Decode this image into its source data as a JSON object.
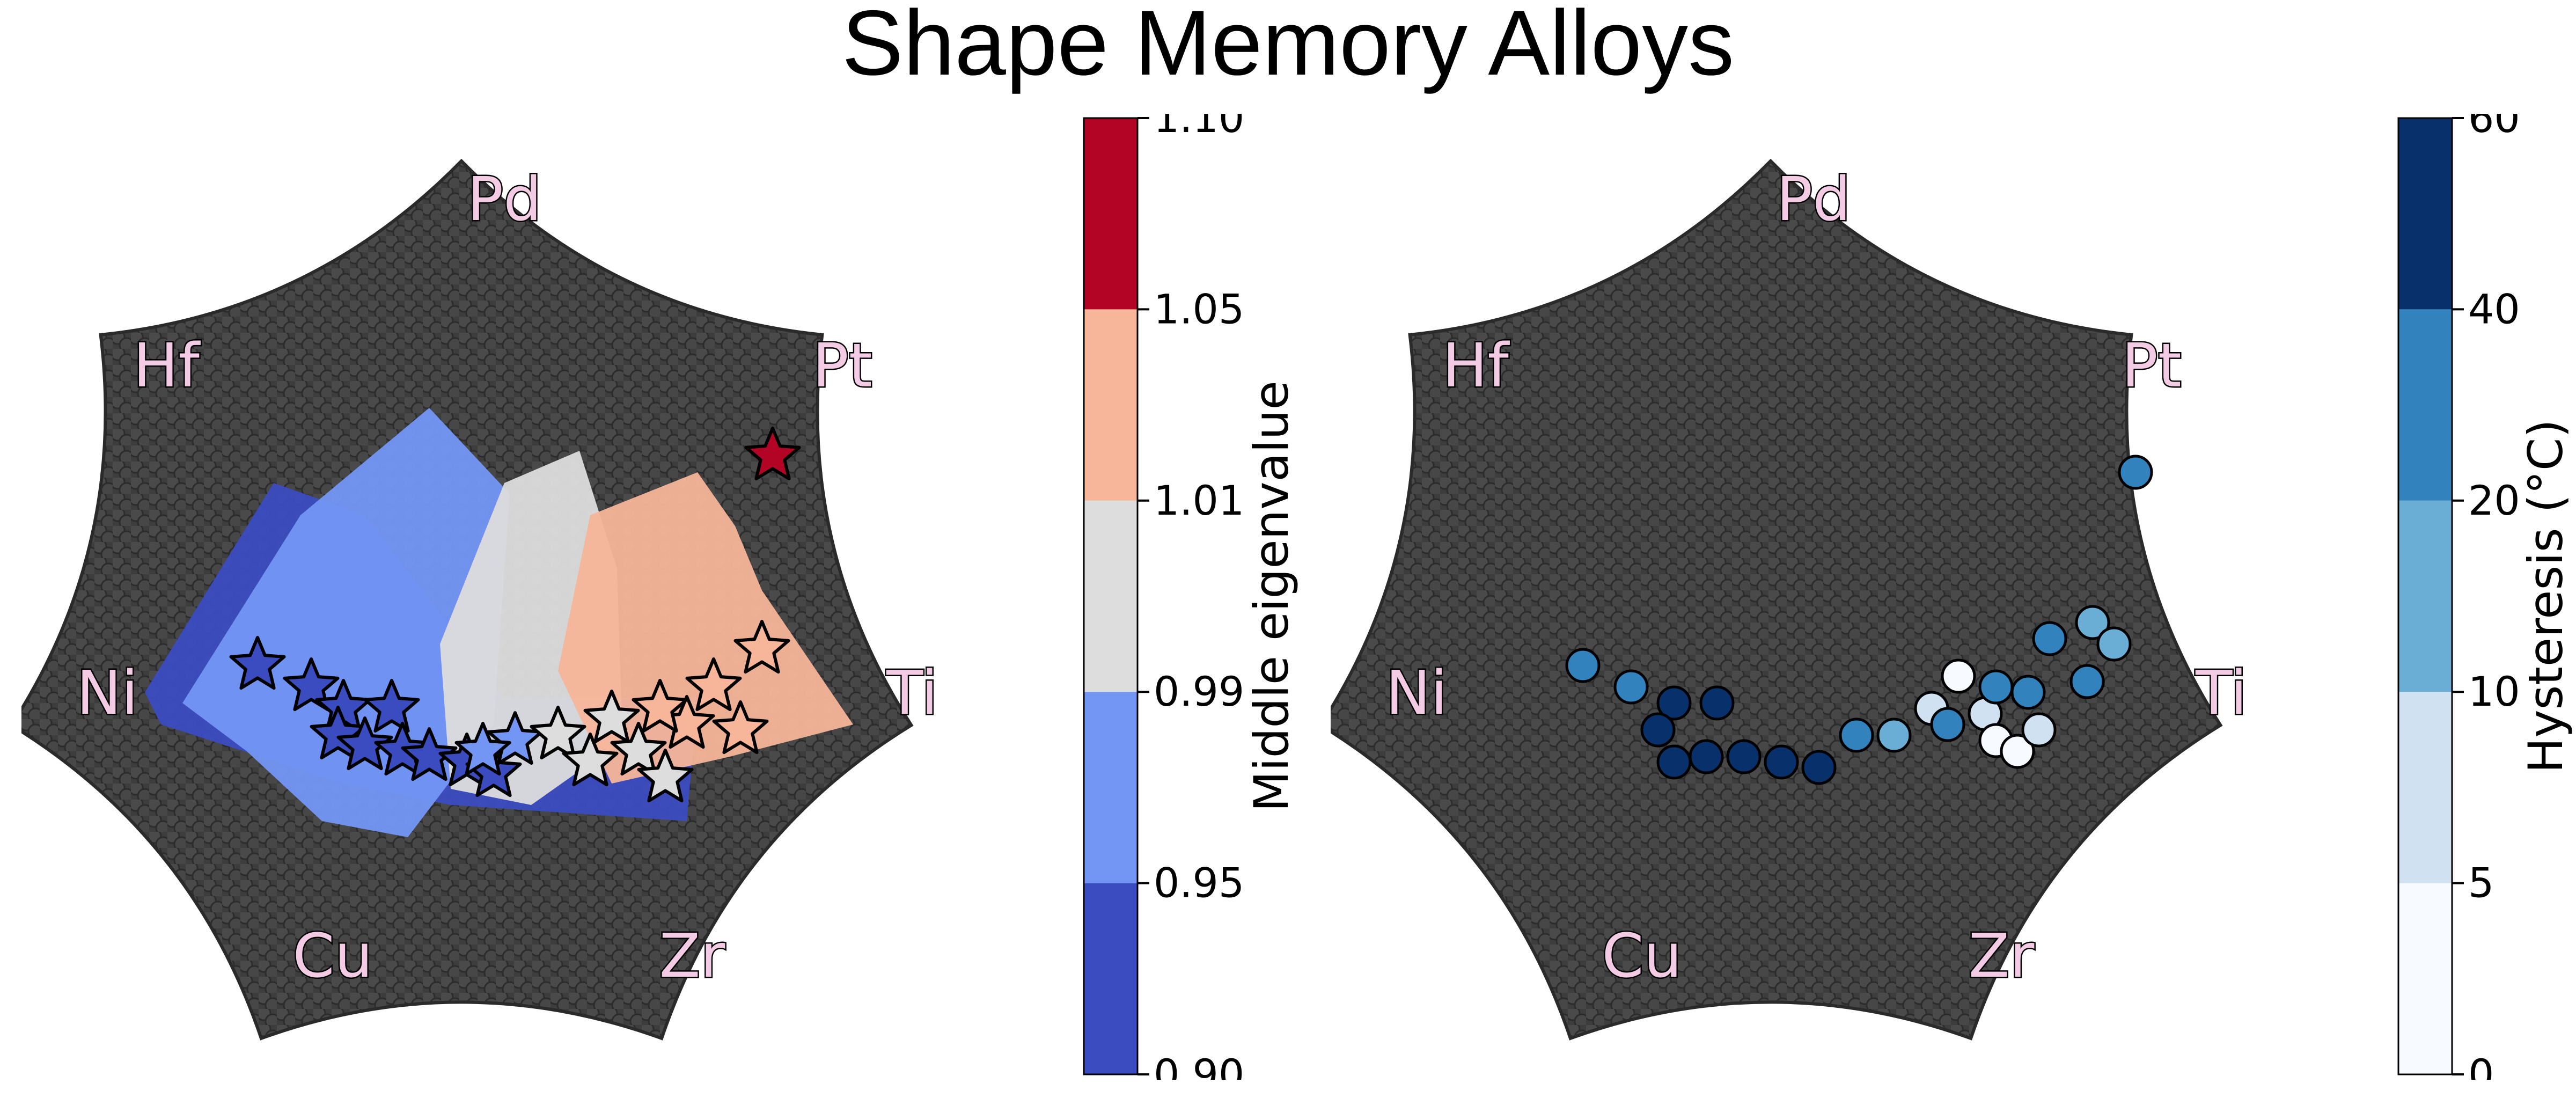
{
  "title": "Shape Memory Alloys",
  "chart_data": [
    {
      "type": "scatter",
      "name_note": "",
      "element_labels": [
        "Pd",
        "Pt",
        "Ti",
        "Zr",
        "Cu",
        "Ni",
        "Hf"
      ],
      "colorbar": {
        "label": "Middle eigenvalue",
        "bounds": [
          0.9,
          0.95,
          0.99,
          1.01,
          1.05,
          1.1
        ],
        "tick_labels": [
          "0.90",
          "0.95",
          "0.99",
          "1.01",
          "1.05",
          "1.10"
        ],
        "colors": [
          "#3b4cc0",
          "#7396f5",
          "#dddddd",
          "#f7b599",
          "#b40426"
        ]
      },
      "background_color": "#444444",
      "region_fills": [
        {
          "bin": "0.90-0.95",
          "color": "#3b4cc0"
        },
        {
          "bin": "0.95-0.99",
          "color": "#7396f5"
        },
        {
          "bin": "0.99-1.01",
          "color": "#dddddd"
        },
        {
          "bin": "1.01-1.05",
          "color": "#f7b599"
        }
      ],
      "star_markers": [
        {
          "value": 0.93
        },
        {
          "value": 0.93
        },
        {
          "value": 0.93
        },
        {
          "value": 0.93
        },
        {
          "value": 0.93
        },
        {
          "value": 0.93
        },
        {
          "value": 0.93
        },
        {
          "value": 0.93
        },
        {
          "value": 0.93
        },
        {
          "value": 0.93
        },
        {
          "value": 0.97
        },
        {
          "value": 0.97
        },
        {
          "value": 1.0
        },
        {
          "value": 1.0
        },
        {
          "value": 1.0
        },
        {
          "value": 1.0
        },
        {
          "value": 1.0
        },
        {
          "value": 1.03
        },
        {
          "value": 1.03
        },
        {
          "value": 1.03
        },
        {
          "value": 1.03
        },
        {
          "value": 1.03
        },
        {
          "value": 1.08
        }
      ]
    },
    {
      "type": "scatter",
      "element_labels": [
        "Pd",
        "Pt",
        "Ti",
        "Zr",
        "Cu",
        "Ni",
        "Hf"
      ],
      "colorbar": {
        "label": "Hysteresis (°C)",
        "bounds": [
          0,
          5,
          10,
          20,
          40,
          60
        ],
        "tick_labels": [
          "0",
          "5",
          "10",
          "20",
          "40",
          "60"
        ],
        "colors": [
          "#f7fbff",
          "#d0e1f2",
          "#6aaed6",
          "#3282be",
          "#08306b"
        ]
      },
      "background_color": "#444444",
      "circle_markers": [
        {
          "value": 30
        },
        {
          "value": 30
        },
        {
          "value": 50
        },
        {
          "value": 50
        },
        {
          "value": 50
        },
        {
          "value": 50
        },
        {
          "value": 50
        },
        {
          "value": 50
        },
        {
          "value": 50
        },
        {
          "value": 50
        },
        {
          "value": 30
        },
        {
          "value": 15
        },
        {
          "value": 8
        },
        {
          "value": 2
        },
        {
          "value": 30
        },
        {
          "value": 8
        },
        {
          "value": 30
        },
        {
          "value": 2
        },
        {
          "value": 2
        },
        {
          "value": 8
        },
        {
          "value": 30
        },
        {
          "value": 30
        },
        {
          "value": 15
        },
        {
          "value": 30
        },
        {
          "value": 15
        },
        {
          "value": 30
        }
      ]
    }
  ]
}
